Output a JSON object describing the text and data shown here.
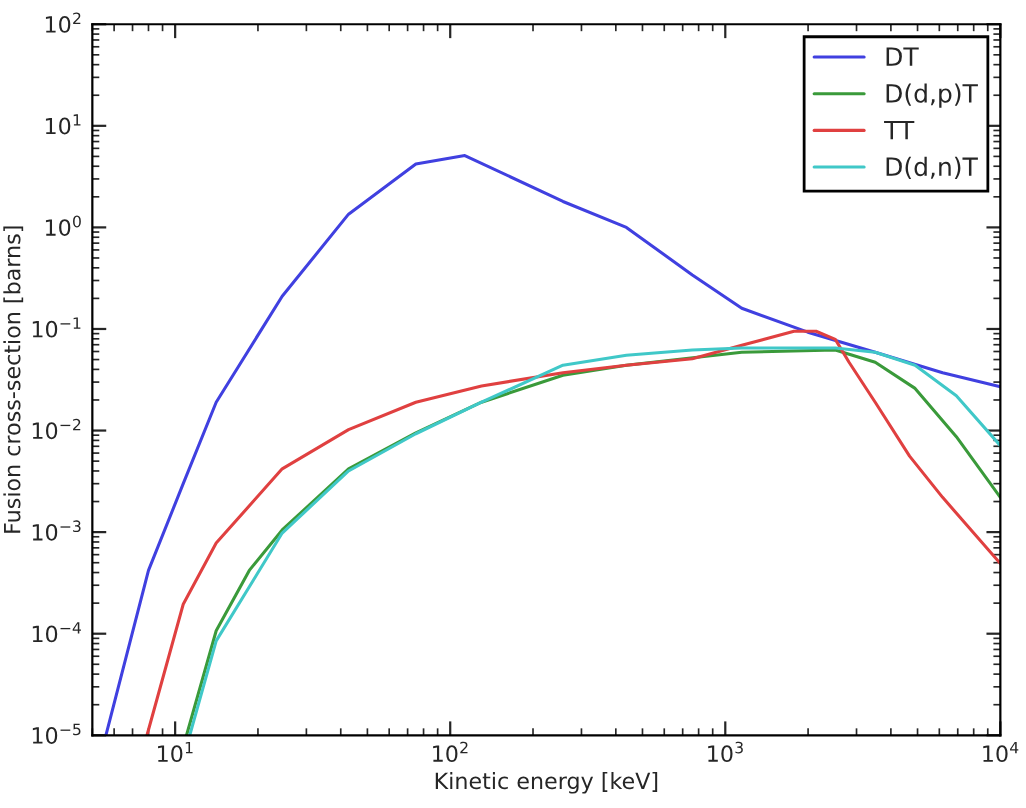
{
  "chart_data": {
    "type": "line",
    "xlabel": "Kinetic energy [keV]",
    "ylabel": "Fusion cross-section [barns]",
    "log": "xy",
    "xlim": [
      5,
      10000
    ],
    "ylim": [
      1e-05,
      100
    ],
    "xticks": [
      {
        "value": 10,
        "label": "10$^{1}$"
      },
      {
        "value": 100,
        "label": "10$^{2}$"
      },
      {
        "value": 1000,
        "label": "10$^{3}$"
      },
      {
        "value": 10000,
        "label": "10$^{4}$"
      }
    ],
    "yticks": [
      {
        "value": 1e-05,
        "label": "10$^{−5}$"
      },
      {
        "value": 0.0001,
        "label": "10$^{−4}$"
      },
      {
        "value": 0.001,
        "label": "10$^{−3}$"
      },
      {
        "value": 0.01,
        "label": "10$^{−2}$"
      },
      {
        "value": 0.1,
        "label": "10$^{−1}$"
      },
      {
        "value": 1,
        "label": "10$^{0}$"
      },
      {
        "value": 10,
        "label": "10$^{1}$"
      },
      {
        "value": 100,
        "label": "10$^{2}$"
      }
    ],
    "grid": false,
    "legend": "top right",
    "marker": "none",
    "line_style": "solid",
    "series": [
      {
        "name": "DT",
        "color": "#4040e0",
        "x": [
          5.6,
          8.0,
          10.7,
          14.1,
          24.5,
          42.7,
          75,
          113,
          257,
          437,
          759,
          1148,
          1995,
          3508,
          6166,
          10000
        ],
        "values": [
          1e-05,
          0.00042,
          0.003,
          0.019,
          0.21,
          1.35,
          4.2,
          5.1,
          1.8,
          1.0,
          0.34,
          0.16,
          0.093,
          0.059,
          0.037,
          0.027
        ]
      },
      {
        "name": "D(d,p)T",
        "color": "#3a9a3a",
        "x": [
          11,
          14.1,
          18.6,
          24.5,
          42.7,
          75,
          130,
          257,
          437,
          1148,
          2512,
          3508,
          4898,
          6918,
          10000
        ],
        "values": [
          1e-05,
          0.000107,
          0.00042,
          0.00105,
          0.0042,
          0.0095,
          0.019,
          0.035,
          0.044,
          0.059,
          0.062,
          0.047,
          0.026,
          0.0087,
          0.0022
        ]
      },
      {
        "name": "TT",
        "color": "#e04040",
        "x": [
          7.9,
          10.7,
          14.1,
          24.5,
          42.7,
          75,
          130,
          257,
          437,
          759,
          1148,
          1778,
          2138,
          2512,
          2818,
          3508,
          4677,
          6166,
          10000
        ],
        "values": [
          1e-05,
          0.000195,
          0.00078,
          0.0042,
          0.0102,
          0.019,
          0.0275,
          0.037,
          0.044,
          0.051,
          0.069,
          0.095,
          0.095,
          0.079,
          0.047,
          0.019,
          0.0056,
          0.0022,
          0.00049
        ]
      },
      {
        "name": "D(d,n)T",
        "color": "#40c8c8",
        "x": [
          11.3,
          14.1,
          24.5,
          42.7,
          75,
          130,
          257,
          437,
          759,
          1148,
          2512,
          3508,
          4898,
          6918,
          10000
        ],
        "values": [
          1e-05,
          8.5e-05,
          0.00098,
          0.004,
          0.0093,
          0.019,
          0.044,
          0.055,
          0.062,
          0.065,
          0.065,
          0.059,
          0.044,
          0.022,
          0.0071
        ]
      }
    ]
  }
}
